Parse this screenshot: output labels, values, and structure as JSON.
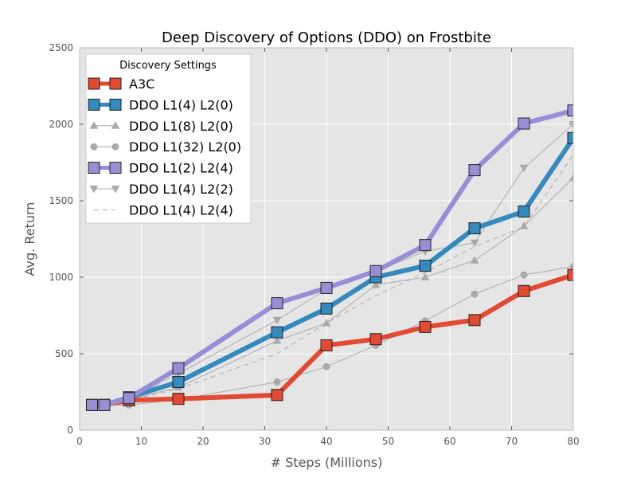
{
  "chart_data": {
    "type": "line",
    "title": "Deep Discovery of Options (DDO) on Frostbite",
    "xlabel": "# Steps (Millions)",
    "ylabel": "Avg. Return",
    "xlim": [
      0,
      80
    ],
    "ylim": [
      0,
      2500
    ],
    "xticks": [
      0,
      10,
      20,
      30,
      40,
      50,
      60,
      70,
      80
    ],
    "yticks": [
      0,
      500,
      1000,
      1500,
      2000,
      2500
    ],
    "grid": true,
    "legend": {
      "title": "Discovery Settings",
      "placement": "top-left"
    },
    "series": [
      {
        "name": "A3C",
        "color": "#e24a33",
        "marker": "square",
        "line": "thick",
        "x": [
          2,
          4,
          8,
          16,
          32,
          40,
          48,
          56,
          64,
          72,
          80
        ],
        "y": [
          165,
          165,
          195,
          205,
          230,
          555,
          595,
          675,
          720,
          910,
          1015
        ]
      },
      {
        "name": "DDO L1(4) L2(0)",
        "color": "#348abd",
        "marker": "square",
        "line": "thick",
        "x": [
          2,
          4,
          8,
          16,
          32,
          40,
          48,
          56,
          64,
          72,
          80
        ],
        "y": [
          165,
          165,
          215,
          315,
          640,
          795,
          1000,
          1075,
          1320,
          1430,
          1910
        ]
      },
      {
        "name": "DDO L1(8) L2(0)",
        "color": "#aaaaaa",
        "marker": "triangle-up",
        "line": "thin",
        "x": [
          2,
          4,
          8,
          16,
          32,
          40,
          48,
          56,
          64,
          72,
          80
        ],
        "y": [
          165,
          165,
          200,
          280,
          585,
          700,
          950,
          1000,
          1110,
          1335,
          1650
        ]
      },
      {
        "name": "DDO L1(32) L2(0)",
        "color": "#aaaaaa",
        "marker": "circle",
        "line": "thin",
        "x": [
          2,
          4,
          8,
          16,
          32,
          40,
          48,
          56,
          64,
          72,
          80
        ],
        "y": [
          165,
          165,
          165,
          200,
          315,
          415,
          555,
          715,
          890,
          1015,
          1070
        ]
      },
      {
        "name": "DDO L1(2) L2(4)",
        "color": "#988ed5",
        "marker": "square",
        "line": "thick",
        "x": [
          2,
          4,
          8,
          16,
          32,
          40,
          48,
          56,
          64,
          72,
          80
        ],
        "y": [
          165,
          165,
          210,
          405,
          830,
          930,
          1040,
          1210,
          1700,
          2005,
          2090
        ]
      },
      {
        "name": "DDO L1(4) L2(2)",
        "color": "#aaaaaa",
        "marker": "triangle-down",
        "line": "thin",
        "x": [
          2,
          4,
          8,
          16,
          32,
          40,
          48,
          56,
          64,
          72,
          80
        ],
        "y": [
          165,
          165,
          205,
          370,
          720,
          920,
          1040,
          1170,
          1225,
          1715,
          2000
        ]
      },
      {
        "name": "DDO L1(4) L2(4)",
        "color": "#aaaaaa",
        "marker": "none",
        "line": "dashed",
        "x": [
          2,
          4,
          8,
          16,
          32,
          40,
          48,
          56,
          64,
          72,
          80
        ],
        "y": [
          165,
          165,
          195,
          270,
          500,
          700,
          880,
          1030,
          1200,
          1330,
          1800
        ]
      }
    ]
  }
}
